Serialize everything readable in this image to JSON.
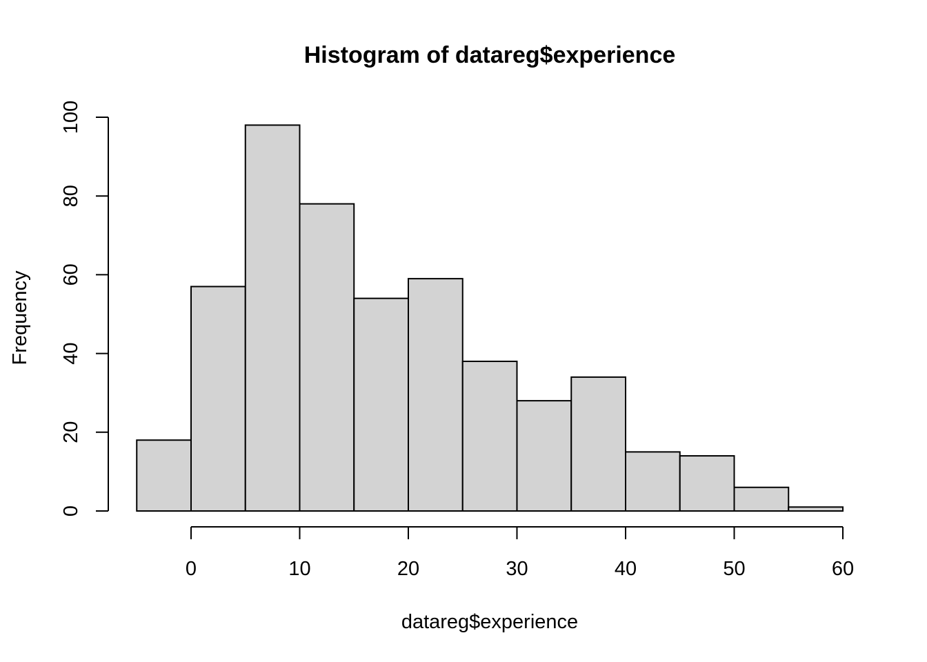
{
  "chart_data": {
    "type": "bar",
    "subtype": "histogram",
    "title": "Histogram of datareg$experience",
    "xlabel": "datareg$experience",
    "ylabel": "Frequency",
    "bin_edges": [
      -5,
      0,
      5,
      10,
      15,
      20,
      25,
      30,
      35,
      40,
      45,
      50,
      55,
      60
    ],
    "values": [
      18,
      57,
      98,
      78,
      54,
      59,
      38,
      28,
      34,
      15,
      14,
      6,
      1
    ],
    "xlim": [
      -5,
      60
    ],
    "ylim": [
      0,
      100
    ],
    "x_ticks": [
      0,
      10,
      20,
      30,
      40,
      50,
      60
    ],
    "y_ticks": [
      0,
      20,
      40,
      60,
      80,
      100
    ],
    "grid": false,
    "legend": "none",
    "bar_color": "#d3d3d3",
    "border_color": "#000000"
  }
}
